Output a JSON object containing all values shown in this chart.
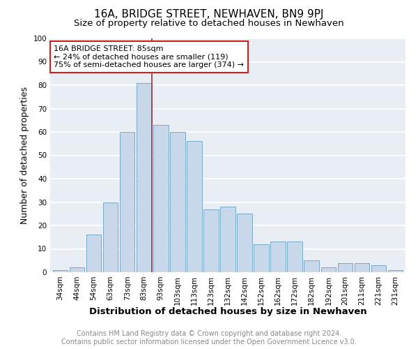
{
  "title": "16A, BRIDGE STREET, NEWHAVEN, BN9 9PJ",
  "subtitle": "Size of property relative to detached houses in Newhaven",
  "xlabel": "Distribution of detached houses by size in Newhaven",
  "ylabel": "Number of detached properties",
  "bar_labels": [
    "34sqm",
    "44sqm",
    "54sqm",
    "63sqm",
    "73sqm",
    "83sqm",
    "93sqm",
    "103sqm",
    "113sqm",
    "123sqm",
    "132sqm",
    "142sqm",
    "152sqm",
    "162sqm",
    "172sqm",
    "182sqm",
    "192sqm",
    "201sqm",
    "211sqm",
    "221sqm",
    "231sqm"
  ],
  "bar_values": [
    1,
    2,
    16,
    30,
    60,
    81,
    63,
    60,
    56,
    27,
    28,
    25,
    12,
    13,
    13,
    5,
    2,
    4,
    4,
    3,
    1
  ],
  "bar_color": "#c8d8ea",
  "bar_edge_color": "#7aaac8",
  "property_line_color": "#993333",
  "annotation_title": "16A BRIDGE STREET: 85sqm",
  "annotation_line1": "← 24% of detached houses are smaller (119)",
  "annotation_line2": "75% of semi-detached houses are larger (374) →",
  "annotation_box_facecolor": "#ffffff",
  "annotation_box_edgecolor": "#cc2222",
  "ylim": [
    0,
    100
  ],
  "yticks": [
    0,
    10,
    20,
    30,
    40,
    50,
    60,
    70,
    80,
    90,
    100
  ],
  "footer1": "Contains HM Land Registry data © Crown copyright and database right 2024.",
  "footer2": "Contains public sector information licensed under the Open Government Licence v3.0.",
  "plot_bg_color": "#e8eef4",
  "fig_bg_color": "#ffffff",
  "grid_color": "#ffffff",
  "title_fontsize": 11,
  "subtitle_fontsize": 9.5,
  "tick_fontsize": 7.5,
  "ylabel_fontsize": 9,
  "xlabel_fontsize": 9.5,
  "annotation_fontsize": 8,
  "footer_fontsize": 7
}
